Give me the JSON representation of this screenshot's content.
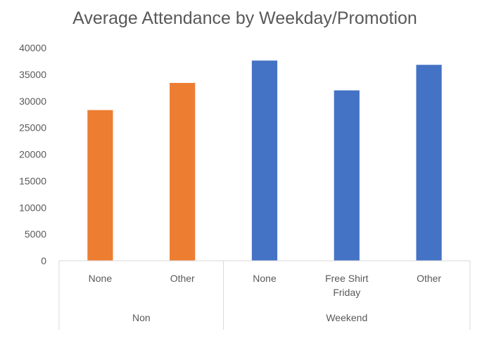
{
  "chart_data": {
    "type": "bar",
    "title": "Average Attendance by Weekday/Promotion",
    "ylim": [
      0,
      40000
    ],
    "yticks": [
      0,
      5000,
      10000,
      15000,
      20000,
      25000,
      30000,
      35000,
      40000
    ],
    "grid": false,
    "groups": [
      {
        "label": "Non",
        "color": "#ed7d31",
        "bars": [
          {
            "label": "None",
            "value": 28300
          },
          {
            "label": "Other",
            "value": 33400
          }
        ]
      },
      {
        "label": "Weekend",
        "color": "#4472c4",
        "bars": [
          {
            "label": "None",
            "value": 37600
          },
          {
            "label": "Free Shirt Friday",
            "value": 32000
          },
          {
            "label": "Other",
            "value": 36800
          }
        ]
      }
    ]
  }
}
